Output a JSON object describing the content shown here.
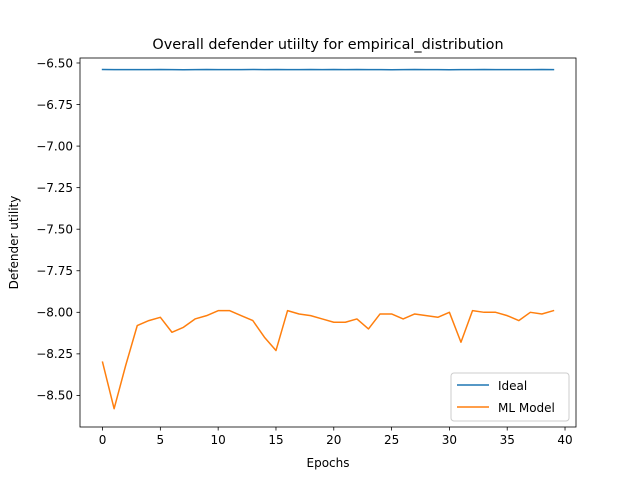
{
  "chart_data": {
    "type": "line",
    "title": "Overall defender utiilty for empirical_distribution",
    "xlabel": "Epochs",
    "ylabel": "Defender utility",
    "xlim": [
      -1.95,
      40.95
    ],
    "ylim": [
      -8.69,
      -6.47
    ],
    "x_ticks": [
      0,
      5,
      10,
      15,
      20,
      25,
      30,
      35,
      40
    ],
    "y_ticks": [
      -6.5,
      -6.75,
      -7.0,
      -7.25,
      -7.5,
      -7.75,
      -8.0,
      -8.25,
      -8.5
    ],
    "x_tick_labels": [
      "0",
      "5",
      "10",
      "15",
      "20",
      "25",
      "30",
      "35",
      "40"
    ],
    "y_tick_labels": [
      "−6.50",
      "−6.75",
      "−7.00",
      "−7.25",
      "−7.50",
      "−7.75",
      "−8.00",
      "−8.25",
      "−8.50"
    ],
    "grid": false,
    "legend_position": "lower-right",
    "x": [
      0,
      1,
      2,
      3,
      4,
      5,
      6,
      7,
      8,
      9,
      10,
      11,
      12,
      13,
      14,
      15,
      16,
      17,
      18,
      19,
      20,
      21,
      22,
      23,
      24,
      25,
      26,
      27,
      28,
      29,
      30,
      31,
      32,
      33,
      34,
      35,
      36,
      37,
      38,
      39
    ],
    "series": [
      {
        "name": "Ideal",
        "color": "#1f77b4",
        "values": [
          -6.539,
          -6.54,
          -6.54,
          -6.54,
          -6.54,
          -6.539,
          -6.54,
          -6.541,
          -6.54,
          -6.539,
          -6.54,
          -6.54,
          -6.54,
          -6.539,
          -6.54,
          -6.539,
          -6.54,
          -6.54,
          -6.539,
          -6.54,
          -6.539,
          -6.54,
          -6.539,
          -6.54,
          -6.54,
          -6.541,
          -6.54,
          -6.539,
          -6.54,
          -6.54,
          -6.541,
          -6.54,
          -6.54,
          -6.539,
          -6.54,
          -6.54,
          -6.54,
          -6.54,
          -6.539,
          -6.54
        ]
      },
      {
        "name": "ML Model",
        "color": "#ff7f0e",
        "values": [
          -8.3,
          -8.58,
          -8.32,
          -8.08,
          -8.05,
          -8.03,
          -8.12,
          -8.09,
          -8.04,
          -8.02,
          -7.99,
          -7.99,
          -8.02,
          -8.05,
          -8.15,
          -8.23,
          -7.99,
          -8.01,
          -8.02,
          -8.04,
          -8.06,
          -8.06,
          -8.04,
          -8.1,
          -8.01,
          -8.01,
          -8.04,
          -8.01,
          -8.02,
          -8.03,
          -8.0,
          -8.18,
          -7.99,
          -8.0,
          -8.0,
          -8.02,
          -8.05,
          -8.0,
          -8.01,
          -7.99
        ]
      }
    ]
  }
}
